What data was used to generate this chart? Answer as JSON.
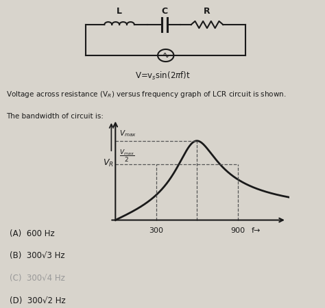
{
  "bg_color": "#d8d4cc",
  "curve_color": "#1a1a1a",
  "f_resonance": 600,
  "f1": 300,
  "f2": 900,
  "x_tick1": 300,
  "x_tick2": 900,
  "answer_A": "(A)  600 Hz",
  "answer_B": "(B)  300\\u221a3 Hz",
  "answer_C": "(C)  300\\u221a4 Hz",
  "answer_D": "(D)  300\\u221a2 Hz",
  "components": [
    "L",
    "C",
    "R"
  ]
}
